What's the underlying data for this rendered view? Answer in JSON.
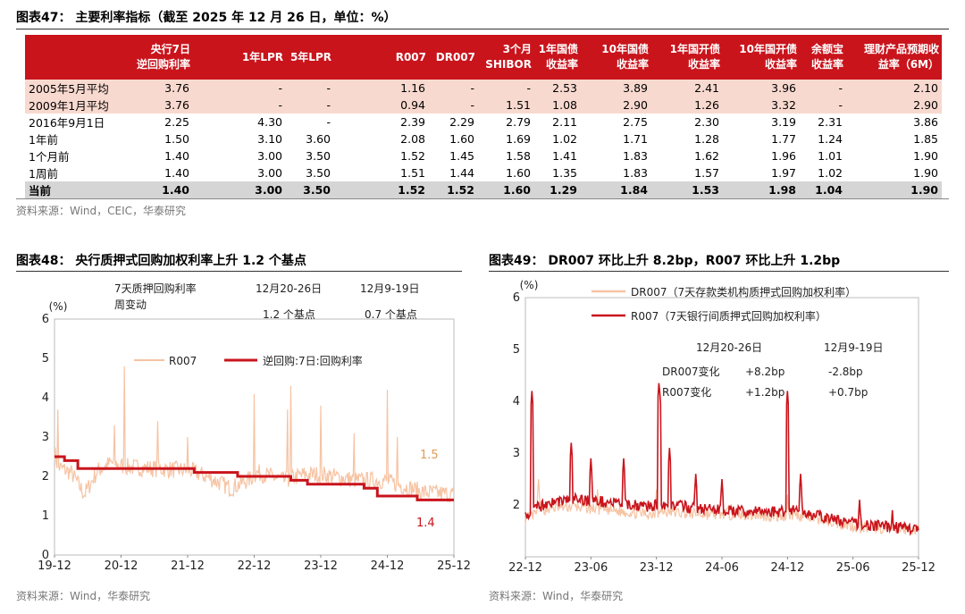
{
  "table": {
    "title": "图表47：  主要利率指标（截至 2025 年 12 月 26 日，单位：%）",
    "columns": [
      "",
      "央行7日\n逆回购利率",
      "1年LPR",
      "5年LPR",
      "R007",
      "DR007",
      "3个月\nSHIBOR",
      "1年国债\n收益率",
      "10年国债\n收益率",
      "1年国开债\n收益率",
      "10年国开债\n收益率",
      "余额宝\n收益率",
      "理财产品预期收\n益率（6M）"
    ],
    "rows": [
      {
        "label": "2005年5月平均",
        "values": [
          "3.76",
          "-",
          "-",
          "1.16",
          "-",
          "-",
          "2.53",
          "3.89",
          "2.41",
          "3.96",
          "-",
          "2.10"
        ]
      },
      {
        "label": "2009年1月平均",
        "values": [
          "3.76",
          "-",
          "-",
          "0.94",
          "-",
          "1.51",
          "1.08",
          "2.90",
          "1.26",
          "3.32",
          "-",
          "2.90"
        ]
      },
      {
        "label": "2016年9月1日",
        "values": [
          "2.25",
          "4.30",
          "-",
          "2.39",
          "2.29",
          "2.79",
          "2.11",
          "2.75",
          "2.30",
          "3.19",
          "2.31",
          "3.86"
        ]
      },
      {
        "label": "1年前",
        "values": [
          "1.50",
          "3.10",
          "3.60",
          "2.08",
          "1.60",
          "1.69",
          "1.02",
          "1.71",
          "1.28",
          "1.77",
          "1.24",
          "1.85"
        ]
      },
      {
        "label": "1个月前",
        "values": [
          "1.40",
          "3.00",
          "3.50",
          "1.52",
          "1.45",
          "1.58",
          "1.41",
          "1.83",
          "1.62",
          "1.96",
          "1.01",
          "1.90"
        ]
      },
      {
        "label": "1周前",
        "values": [
          "1.40",
          "3.00",
          "3.50",
          "1.51",
          "1.44",
          "1.60",
          "1.35",
          "1.83",
          "1.57",
          "1.97",
          "1.02",
          "1.90"
        ]
      },
      {
        "label": "当前",
        "values": [
          "1.40",
          "3.00",
          "3.50",
          "1.52",
          "1.52",
          "1.60",
          "1.29",
          "1.84",
          "1.53",
          "1.98",
          "1.04",
          "1.90"
        ]
      }
    ],
    "source": "资料来源：Wind，CEIC，华泰研究"
  },
  "chart_data": [
    {
      "type": "table",
      "ref": "table"
    },
    {
      "type": "line",
      "title": "图表48：  央行质押式回购加权利率上升 1.2 个基点",
      "ylabel": "(%)",
      "ylim": [
        0,
        6
      ],
      "yticks": [
        0,
        1,
        2,
        3,
        4,
        5,
        6
      ],
      "xticks": [
        "19-12",
        "20-12",
        "21-12",
        "22-12",
        "23-12",
        "24-12",
        "25-12"
      ],
      "xlim": [
        "2019-12",
        "2025-12"
      ],
      "series": [
        {
          "name": "R007",
          "color": "#f6c3a3",
          "style": "noisy",
          "anchors": [
            [
              2019.95,
              2.6
            ],
            [
              2020.0,
              2.2
            ],
            [
              2020.2,
              2.05
            ],
            [
              2020.4,
              1.5
            ],
            [
              2020.6,
              2.1
            ],
            [
              2020.8,
              2.3
            ],
            [
              2021.0,
              2.2
            ],
            [
              2021.5,
              2.15
            ],
            [
              2022.0,
              2.1
            ],
            [
              2022.3,
              1.9
            ],
            [
              2022.6,
              1.65
            ],
            [
              2022.9,
              1.9
            ],
            [
              2023.0,
              2.05
            ],
            [
              2023.4,
              1.85
            ],
            [
              2023.7,
              2.0
            ],
            [
              2024.0,
              2.0
            ],
            [
              2024.5,
              1.85
            ],
            [
              2024.9,
              1.85
            ],
            [
              2025.0,
              1.8
            ],
            [
              2025.5,
              1.55
            ],
            [
              2025.95,
              1.5
            ]
          ],
          "spikes": [
            [
              2020.0,
              3.7
            ],
            [
              2020.85,
              3.3
            ],
            [
              2021.0,
              4.8
            ],
            [
              2021.5,
              3.4
            ],
            [
              2021.95,
              3.0
            ],
            [
              2022.95,
              4.1
            ],
            [
              2023.45,
              3.7
            ],
            [
              2023.5,
              4.3
            ],
            [
              2023.95,
              3.8
            ],
            [
              2024.45,
              3.1
            ],
            [
              2024.95,
              4.2
            ],
            [
              2025.1,
              3.0
            ]
          ],
          "end_label": "1.5"
        },
        {
          "name": "逆回购:7日:回购利率",
          "color": "#c9141c",
          "style": "step",
          "steps": [
            [
              2019.95,
              2.5
            ],
            [
              2020.1,
              2.4
            ],
            [
              2020.3,
              2.2
            ],
            [
              2022.05,
              2.1
            ],
            [
              2022.7,
              2.0
            ],
            [
              2023.5,
              1.9
            ],
            [
              2023.75,
              1.8
            ],
            [
              2024.6,
              1.7
            ],
            [
              2024.8,
              1.5
            ],
            [
              2025.4,
              1.4
            ],
            [
              2025.95,
              1.4
            ]
          ],
          "end_label": "1.4"
        }
      ],
      "annotation": {
        "label": "7天质押回购利率\n周变动",
        "periods": [
          "12月20-26日",
          "12月9-19日"
        ],
        "values": [
          "1.2 个基点",
          "0.7 个基点"
        ]
      },
      "legend": "top-center"
    },
    {
      "type": "line",
      "title": "图表49：  DR007 环比上升 8.2bp，R007 环比上升 1.2bp",
      "ylabel": "(%)",
      "ylim": [
        1,
        6
      ],
      "yticks": [
        2,
        3,
        4,
        5,
        6
      ],
      "xticks": [
        "22-12",
        "23-06",
        "23-12",
        "24-06",
        "24-12",
        "25-06",
        "25-12"
      ],
      "xlim": [
        "2022-12",
        "2025-12"
      ],
      "series": [
        {
          "name": "DR007（7天存款类机构质押式回购加权利率）",
          "color": "#f6c3a3",
          "style": "noisy",
          "anchors": [
            [
              2022.95,
              1.7
            ],
            [
              2023.1,
              1.9
            ],
            [
              2023.3,
              1.95
            ],
            [
              2023.5,
              1.9
            ],
            [
              2023.7,
              1.85
            ],
            [
              2023.9,
              1.8
            ],
            [
              2024.0,
              1.85
            ],
            [
              2024.3,
              1.8
            ],
            [
              2024.6,
              1.8
            ],
            [
              2024.9,
              1.75
            ],
            [
              2025.0,
              1.8
            ],
            [
              2025.2,
              1.7
            ],
            [
              2025.5,
              1.55
            ],
            [
              2025.95,
              1.5
            ]
          ],
          "spikes": [
            [
              2023.05,
              2.5
            ],
            [
              2023.5,
              2.3
            ],
            [
              2023.95,
              2.3
            ],
            [
              2024.5,
              2.0
            ],
            [
              2024.95,
              2.2
            ]
          ],
          "end_label": ""
        },
        {
          "name": "R007（7天银行间质押式回购加权利率）",
          "color": "#c9141c",
          "style": "noisy",
          "anchors": [
            [
              2022.95,
              1.8
            ],
            [
              2023.1,
              2.0
            ],
            [
              2023.3,
              2.1
            ],
            [
              2023.5,
              2.05
            ],
            [
              2023.7,
              2.0
            ],
            [
              2023.9,
              1.95
            ],
            [
              2024.0,
              2.0
            ],
            [
              2024.3,
              1.9
            ],
            [
              2024.6,
              1.85
            ],
            [
              2024.9,
              1.85
            ],
            [
              2025.0,
              1.9
            ],
            [
              2025.2,
              1.75
            ],
            [
              2025.5,
              1.6
            ],
            [
              2025.95,
              1.52
            ]
          ],
          "spikes": [
            [
              2023.0,
              4.2
            ],
            [
              2023.3,
              3.2
            ],
            [
              2023.45,
              2.9
            ],
            [
              2023.7,
              2.9
            ],
            [
              2023.97,
              4.4
            ],
            [
              2024.05,
              3.1
            ],
            [
              2024.25,
              2.6
            ],
            [
              2024.45,
              2.5
            ],
            [
              2024.95,
              4.2
            ],
            [
              2025.05,
              2.6
            ],
            [
              2025.5,
              2.1
            ],
            [
              2025.75,
              1.9
            ]
          ],
          "end_label": ""
        }
      ],
      "annotation": {
        "periods": [
          "12月20-26日",
          "12月9-19日"
        ],
        "rows": [
          {
            "label": "DR007变化",
            "values": [
              "+8.2bp",
              "-2.8bp"
            ]
          },
          {
            "label": "R007变化",
            "values": [
              "+1.2bp",
              "+0.7bp"
            ]
          }
        ]
      },
      "legend": "top-left"
    }
  ],
  "figures": {
    "fig48_source": "资料来源：Wind，华泰研究",
    "fig49_source": "资料来源：Wind，华泰研究"
  }
}
